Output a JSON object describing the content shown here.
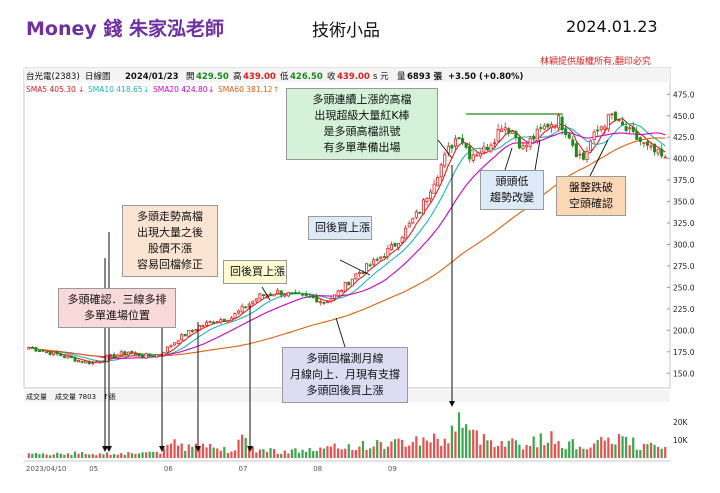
{
  "header": {
    "title": "Money 錢  朱家泓老師",
    "subtitle": "技術小品",
    "date": "2024.01.23",
    "copyright": "林穎提供版權所有,翻印必究"
  },
  "info_bar": {
    "stock": "台光電(2383)",
    "period": "日線圖",
    "date": "2024/01/23",
    "open_label": "開",
    "open": "429.50",
    "high_label": "高",
    "high": "439.00",
    "low_label": "低",
    "low": "426.50",
    "close_label": "收",
    "close": "439.00",
    "unit": "s 元",
    "volume_label": "量",
    "volume": "6893 張",
    "change": "+3.50 (+0.80%)"
  },
  "ma_legend": [
    {
      "label": "SMA5 405.30",
      "arrow": "↓",
      "color": "#e02020"
    },
    {
      "label": "SMA10 418.65",
      "arrow": "↓",
      "color": "#22b5b5"
    },
    {
      "label": "SMA20 424.80",
      "arrow": "↓",
      "color": "#d000c0"
    },
    {
      "label": "SMA60 381.12",
      "arrow": "↑",
      "color": "#e06010"
    }
  ],
  "volume_legend": {
    "panel": "成交量",
    "label": "成交量 7803",
    "unit": "↑張"
  },
  "annotations": {
    "high_breakout": [
      "多頭連續上漲的高檔",
      "出現超級大量紅K棒",
      "是多頭高檔訊號",
      "有多單準備出場"
    ],
    "bull_high": [
      "多頭走勢高檔",
      "出現大量之後",
      "股價不漲",
      "容易回檔修正"
    ],
    "pullback_buy_1": [
      "回後買上漲"
    ],
    "pullback_buy_2": [
      "回後買上漲"
    ],
    "bull_confirm": [
      "多頭確認．三線多排",
      "多單進場位置"
    ],
    "monthly_line": [
      "多頭回檔測月線",
      "月線向上．月現有支撐",
      "多頭回後買上漲"
    ],
    "lower_head": [
      "頭頭低",
      "趨勢改變"
    ],
    "consolidation": [
      "盤整跌破",
      "空頭確認"
    ]
  },
  "chart_data": {
    "type": "candlestick",
    "title": "台光電(2383) 日線圖",
    "ylim": [
      137.5,
      480
    ],
    "price_ticks": [
      "475.0",
      "450.0",
      "425.0",
      "400.0",
      "375.0",
      "350.0",
      "325.0",
      "300.0",
      "275.0",
      "250.0",
      "225.0",
      "200.0",
      "175.0",
      "150.0"
    ],
    "volume_ticks": [
      "20K",
      "10K"
    ],
    "date_ticks": [
      "2023/04/10",
      "05",
      "06",
      "07",
      "08",
      "09"
    ],
    "price_anchors": [
      [
        0,
        180
      ],
      [
        8,
        172
      ],
      [
        14,
        165
      ],
      [
        18,
        162
      ],
      [
        22,
        168
      ],
      [
        28,
        175
      ],
      [
        32,
        170
      ],
      [
        37,
        172
      ],
      [
        42,
        190
      ],
      [
        48,
        205
      ],
      [
        53,
        212
      ],
      [
        57,
        215
      ],
      [
        60,
        225
      ],
      [
        65,
        240
      ],
      [
        70,
        245
      ],
      [
        75,
        240
      ],
      [
        80,
        238
      ],
      [
        83,
        233
      ],
      [
        86,
        240
      ],
      [
        92,
        265
      ],
      [
        98,
        282
      ],
      [
        103,
        300
      ],
      [
        110,
        340
      ],
      [
        114,
        375
      ],
      [
        118,
        410
      ],
      [
        121,
        430
      ],
      [
        124,
        405
      ],
      [
        128,
        410
      ],
      [
        131,
        425
      ],
      [
        133,
        440
      ],
      [
        136,
        432
      ],
      [
        139,
        412
      ],
      [
        142,
        425
      ],
      [
        146,
        440
      ],
      [
        149,
        445
      ],
      [
        152,
        428
      ],
      [
        154,
        408
      ],
      [
        156,
        400
      ],
      [
        158,
        420
      ],
      [
        161,
        438
      ],
      [
        164,
        450
      ],
      [
        166,
        440
      ],
      [
        169,
        430
      ],
      [
        172,
        420
      ],
      [
        174,
        412
      ],
      [
        177,
        405
      ],
      [
        179,
        398
      ]
    ],
    "volume_anchors": [
      [
        0,
        2
      ],
      [
        10,
        3
      ],
      [
        20,
        2.5
      ],
      [
        30,
        3
      ],
      [
        38,
        4
      ],
      [
        41,
        10
      ],
      [
        44,
        6
      ],
      [
        47,
        12
      ],
      [
        50,
        7
      ],
      [
        56,
        5
      ],
      [
        60,
        10
      ],
      [
        64,
        5
      ],
      [
        72,
        4
      ],
      [
        82,
        5
      ],
      [
        90,
        7
      ],
      [
        100,
        8
      ],
      [
        108,
        10
      ],
      [
        113,
        12
      ],
      [
        117,
        9
      ],
      [
        121,
        25
      ],
      [
        124,
        14
      ],
      [
        128,
        11
      ],
      [
        134,
        10
      ],
      [
        140,
        8
      ],
      [
        146,
        12
      ],
      [
        150,
        9
      ],
      [
        156,
        7
      ],
      [
        162,
        9
      ],
      [
        166,
        12
      ],
      [
        172,
        7
      ],
      [
        179,
        6
      ]
    ],
    "bar_count": 180,
    "moving_averages": [
      "SMA5",
      "SMA10",
      "SMA20",
      "SMA60"
    ],
    "neckline_price": 452,
    "grid": false,
    "legend": "top-left"
  }
}
